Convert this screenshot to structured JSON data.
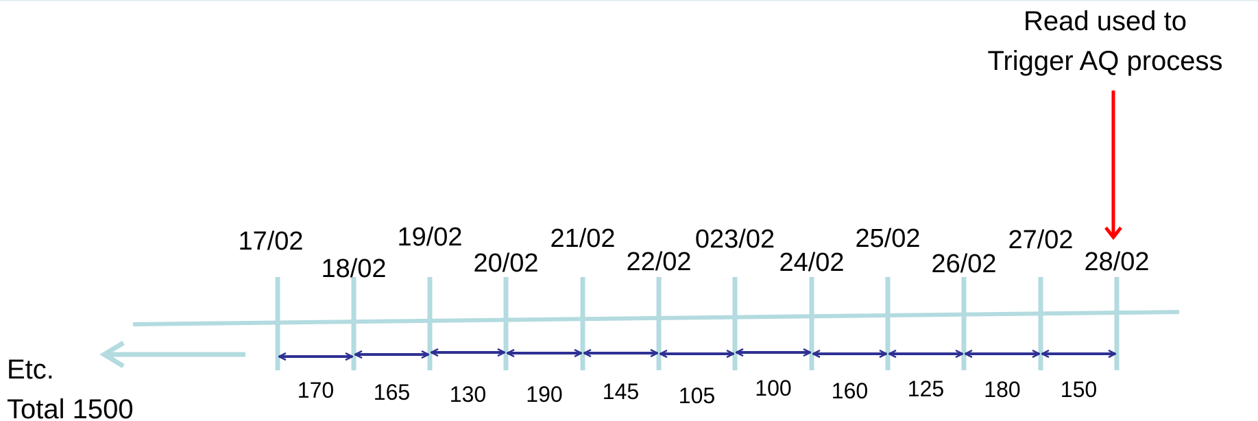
{
  "annotation": {
    "lines": [
      "Read used to",
      "Trigger AQ process"
    ],
    "arrow_color": "#ff0000"
  },
  "dates": [
    "17/02",
    "18/02",
    "19/02",
    "20/02",
    "21/02",
    "22/02",
    "023/02",
    "24/02",
    "25/02",
    "26/02",
    "27/02",
    "28/02"
  ],
  "intervals": [
    "170",
    "165",
    "130",
    "190",
    "145",
    "105",
    "100",
    "160",
    "125",
    "180",
    "150"
  ],
  "footer": {
    "etc": "Etc.",
    "total": "Total 1500"
  },
  "colors": {
    "timeline": "#b3dbe0",
    "interval_arrow": "#2e3192",
    "annotation_arrow": "#ff0000"
  },
  "icons": {
    "direction_arrow": "left-arrow-icon",
    "trigger_arrow": "down-arrow-icon"
  }
}
